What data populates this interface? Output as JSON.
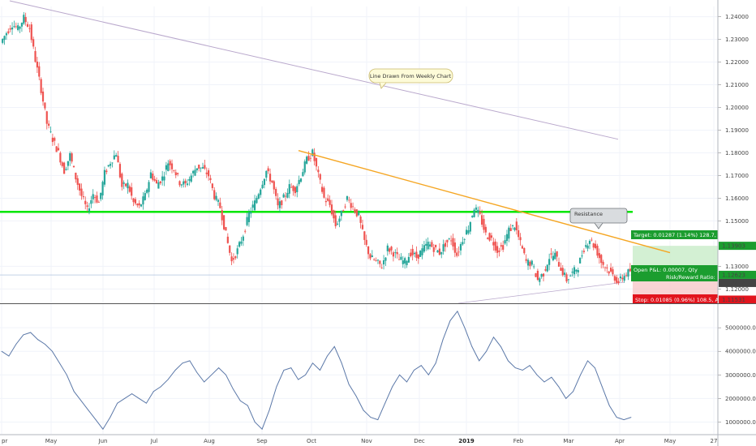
{
  "chart_data": [
    {
      "type": "candlestick",
      "x_labels": [
        "pr",
        "May",
        "Jun",
        "Jul",
        "Aug",
        "Sep",
        "Oct",
        "Nov",
        "Dec",
        "2019",
        "Feb",
        "Mar",
        "Apr",
        "May",
        "27"
      ],
      "y_ticks": [
        "1.24000",
        "1.23000",
        "1.22000",
        "1.21000",
        "1.20000",
        "1.19000",
        "1.18000",
        "1.17000",
        "1.16000",
        "1.15000",
        "1.13000",
        "1.12000"
      ],
      "ylim": [
        1.1137,
        1.2445
      ],
      "close_series": [
        1.2285,
        1.233,
        1.2368,
        1.2345,
        1.2395,
        1.235,
        1.221,
        1.208,
        1.193,
        1.186,
        1.18,
        1.172,
        1.179,
        1.169,
        1.161,
        1.1545,
        1.162,
        1.158,
        1.171,
        1.176,
        1.18,
        1.165,
        1.166,
        1.158,
        1.156,
        1.161,
        1.171,
        1.166,
        1.169,
        1.176,
        1.173,
        1.167,
        1.166,
        1.17,
        1.174,
        1.173,
        1.17,
        1.161,
        1.156,
        1.144,
        1.132,
        1.137,
        1.144,
        1.153,
        1.158,
        1.165,
        1.172,
        1.167,
        1.156,
        1.16,
        1.165,
        1.164,
        1.17,
        1.177,
        1.18,
        1.17,
        1.16,
        1.157,
        1.148,
        1.153,
        1.16,
        1.156,
        1.152,
        1.141,
        1.134,
        1.132,
        1.13,
        1.138,
        1.136,
        1.133,
        1.132,
        1.136,
        1.134,
        1.137,
        1.14,
        1.138,
        1.136,
        1.14,
        1.142,
        1.135,
        1.142,
        1.147,
        1.156,
        1.152,
        1.144,
        1.142,
        1.137,
        1.139,
        1.146,
        1.148,
        1.14,
        1.132,
        1.131,
        1.124,
        1.127,
        1.134,
        1.135,
        1.129,
        1.124,
        1.127,
        1.13,
        1.138,
        1.142,
        1.138,
        1.132,
        1.129,
        1.126,
        1.123,
        1.126,
        1.128
      ],
      "overlays": {
        "resistance_level": 1.154,
        "weekly_line": [
          [
            "Apr",
            1.247
          ],
          [
            "Mar-end",
            1.186
          ]
        ],
        "orange_trend": [
          [
            "Sep-end",
            1.181
          ],
          [
            "Apr-end",
            1.136
          ]
        ],
        "support_line": [
          [
            "Nov",
            1.1137
          ],
          [
            "Apr",
            1.123
          ]
        ]
      },
      "annotations": [
        {
          "text": "Line Drawn From Weekly Chart"
        },
        {
          "text": "Resistance"
        }
      ],
      "position": {
        "target_text": "Target: 0.01287 (1.14%) 128.7, A",
        "open_pl_text": "Open P&L: 0.00007, Qty",
        "rr_text": "Risk/Reward Ratio: 1.",
        "stop_text": "Stop: 0.01085 (0.96%) 108.5, A",
        "target_price": "1.13903",
        "entry_price": "1.12623",
        "current_price": "1.12616",
        "stop_price": "1.11531",
        "target_value": 1.13903,
        "entry_value": 1.12623,
        "stop_value": 1.11531
      },
      "colors": {
        "up": "#26a69a",
        "down": "#ef5350",
        "resistance": "#00e600",
        "trend": "#f5a623",
        "indicator": "#5b78a8"
      }
    },
    {
      "type": "line",
      "y_ticks": [
        "5000000.0000",
        "4000000.0000",
        "3000000.0000",
        "2000000.0000",
        "1000000.0000"
      ],
      "ylim": [
        500000,
        5900000
      ],
      "values": [
        4000000,
        3800000,
        4300000,
        4700000,
        4800000,
        4500000,
        4300000,
        4000000,
        3500000,
        3000000,
        2300000,
        1900000,
        1500000,
        1100000,
        700000,
        1200000,
        1800000,
        2000000,
        2200000,
        2000000,
        1800000,
        2300000,
        2500000,
        2800000,
        3200000,
        3500000,
        3600000,
        3100000,
        2700000,
        3000000,
        3300000,
        3000000,
        2400000,
        1900000,
        1700000,
        1000000,
        700000,
        1500000,
        2500000,
        3200000,
        3300000,
        2800000,
        3000000,
        3500000,
        3200000,
        3800000,
        4200000,
        3500000,
        2600000,
        2100000,
        1500000,
        1200000,
        1100000,
        1800000,
        2500000,
        3000000,
        2700000,
        3200000,
        3400000,
        3000000,
        3500000,
        4500000,
        5300000,
        5700000,
        5000000,
        4200000,
        3600000,
        4000000,
        4600000,
        4200000,
        3600000,
        3300000,
        3200000,
        3400000,
        3000000,
        2700000,
        2900000,
        2500000,
        2000000,
        2300000,
        3000000,
        3600000,
        3300000,
        2500000,
        1700000,
        1200000,
        1100000,
        1200000
      ]
    }
  ]
}
